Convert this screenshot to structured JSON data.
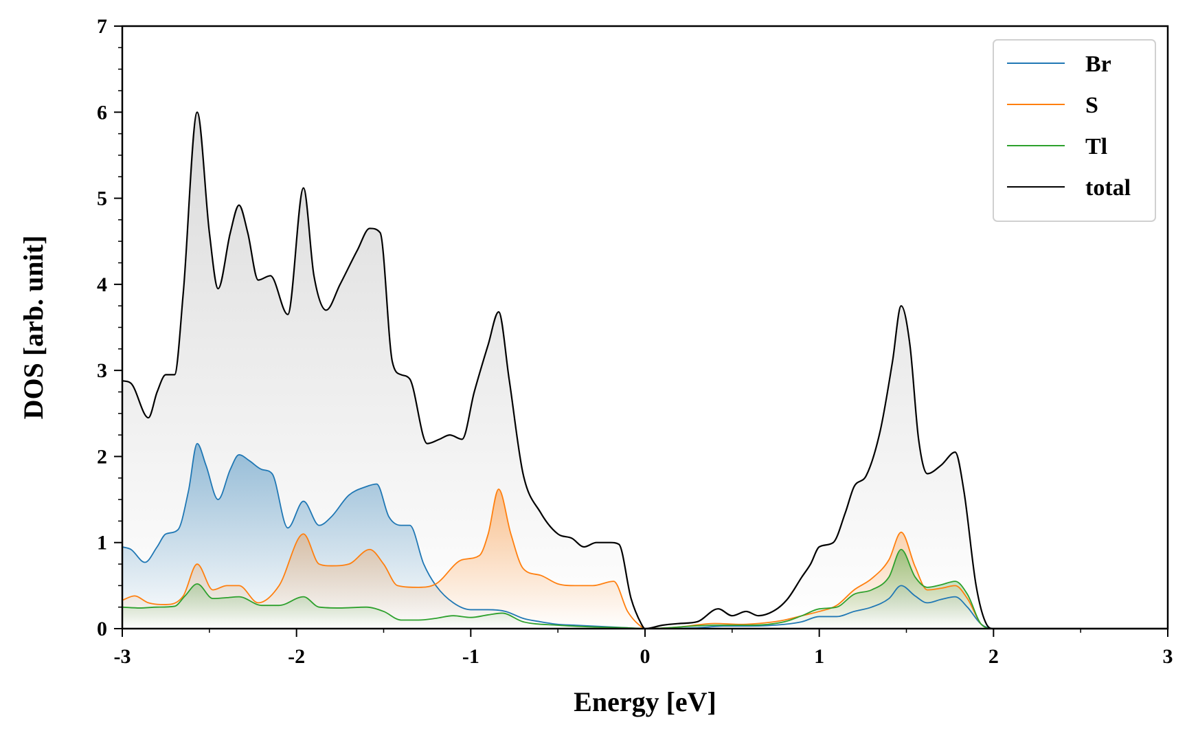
{
  "chart_data": {
    "type": "area",
    "title": "",
    "xlabel": "Energy [eV]",
    "ylabel": "DOS [arb. unit]",
    "xlim": [
      -3,
      3
    ],
    "ylim": [
      0,
      7
    ],
    "xticks": [
      -3,
      -2,
      -1,
      0,
      1,
      2,
      3
    ],
    "xtick_labels": [
      "-3",
      "-2",
      "-1",
      "0",
      "1",
      "2",
      "3"
    ],
    "yticks": [
      0,
      1,
      2,
      3,
      4,
      5,
      6,
      7
    ],
    "ytick_labels": [
      "0",
      "1",
      "2",
      "3",
      "4",
      "5",
      "6",
      "7"
    ],
    "legend_position": "top-right",
    "grid": false,
    "series": [
      {
        "name": "Br",
        "color": "#1f77b4",
        "filled": true,
        "points": [
          [
            -3.0,
            0.95
          ],
          [
            -2.95,
            0.92
          ],
          [
            -2.87,
            0.77
          ],
          [
            -2.8,
            0.95
          ],
          [
            -2.75,
            1.1
          ],
          [
            -2.68,
            1.15
          ],
          [
            -2.62,
            1.6
          ],
          [
            -2.57,
            2.15
          ],
          [
            -2.52,
            1.9
          ],
          [
            -2.45,
            1.5
          ],
          [
            -2.38,
            1.85
          ],
          [
            -2.33,
            2.02
          ],
          [
            -2.27,
            1.95
          ],
          [
            -2.2,
            1.85
          ],
          [
            -2.14,
            1.8
          ],
          [
            -2.05,
            1.17
          ],
          [
            -1.96,
            1.48
          ],
          [
            -1.87,
            1.2
          ],
          [
            -1.8,
            1.3
          ],
          [
            -1.7,
            1.55
          ],
          [
            -1.6,
            1.65
          ],
          [
            -1.54,
            1.68
          ],
          [
            -1.47,
            1.3
          ],
          [
            -1.4,
            1.2
          ],
          [
            -1.35,
            1.2
          ],
          [
            -1.27,
            0.75
          ],
          [
            -1.2,
            0.5
          ],
          [
            -1.1,
            0.3
          ],
          [
            -1.0,
            0.22
          ],
          [
            -0.9,
            0.22
          ],
          [
            -0.8,
            0.2
          ],
          [
            -0.7,
            0.12
          ],
          [
            -0.6,
            0.08
          ],
          [
            -0.5,
            0.05
          ],
          [
            -0.4,
            0.04
          ],
          [
            -0.3,
            0.03
          ],
          [
            -0.2,
            0.02
          ],
          [
            -0.1,
            0.01
          ],
          [
            0.0,
            0.0
          ],
          [
            0.3,
            0.01
          ],
          [
            0.45,
            0.03
          ],
          [
            0.6,
            0.03
          ],
          [
            0.8,
            0.05
          ],
          [
            0.9,
            0.08
          ],
          [
            1.0,
            0.14
          ],
          [
            1.1,
            0.14
          ],
          [
            1.2,
            0.2
          ],
          [
            1.3,
            0.25
          ],
          [
            1.4,
            0.35
          ],
          [
            1.47,
            0.5
          ],
          [
            1.55,
            0.38
          ],
          [
            1.62,
            0.3
          ],
          [
            1.7,
            0.34
          ],
          [
            1.78,
            0.37
          ],
          [
            1.85,
            0.25
          ],
          [
            1.93,
            0.05
          ],
          [
            2.0,
            0.0
          ],
          [
            3.0,
            0.0
          ]
        ]
      },
      {
        "name": "S",
        "color": "#ff7f0e",
        "filled": true,
        "points": [
          [
            -3.0,
            0.33
          ],
          [
            -2.93,
            0.38
          ],
          [
            -2.85,
            0.3
          ],
          [
            -2.75,
            0.28
          ],
          [
            -2.65,
            0.38
          ],
          [
            -2.57,
            0.75
          ],
          [
            -2.48,
            0.45
          ],
          [
            -2.4,
            0.5
          ],
          [
            -2.33,
            0.5
          ],
          [
            -2.22,
            0.3
          ],
          [
            -2.1,
            0.5
          ],
          [
            -1.96,
            1.1
          ],
          [
            -1.87,
            0.75
          ],
          [
            -1.8,
            0.73
          ],
          [
            -1.7,
            0.75
          ],
          [
            -1.58,
            0.92
          ],
          [
            -1.5,
            0.75
          ],
          [
            -1.42,
            0.5
          ],
          [
            -1.3,
            0.48
          ],
          [
            -1.2,
            0.52
          ],
          [
            -1.05,
            0.8
          ],
          [
            -0.95,
            0.85
          ],
          [
            -0.9,
            1.1
          ],
          [
            -0.84,
            1.62
          ],
          [
            -0.77,
            1.1
          ],
          [
            -0.7,
            0.7
          ],
          [
            -0.6,
            0.62
          ],
          [
            -0.5,
            0.52
          ],
          [
            -0.4,
            0.5
          ],
          [
            -0.3,
            0.5
          ],
          [
            -0.18,
            0.55
          ],
          [
            -0.1,
            0.2
          ],
          [
            -0.02,
            0.02
          ],
          [
            0.0,
            0.0
          ],
          [
            0.2,
            0.02
          ],
          [
            0.4,
            0.06
          ],
          [
            0.55,
            0.05
          ],
          [
            0.7,
            0.07
          ],
          [
            0.8,
            0.1
          ],
          [
            0.9,
            0.15
          ],
          [
            1.0,
            0.2
          ],
          [
            1.1,
            0.27
          ],
          [
            1.2,
            0.45
          ],
          [
            1.3,
            0.58
          ],
          [
            1.4,
            0.8
          ],
          [
            1.47,
            1.12
          ],
          [
            1.55,
            0.72
          ],
          [
            1.62,
            0.45
          ],
          [
            1.7,
            0.47
          ],
          [
            1.78,
            0.5
          ],
          [
            1.85,
            0.35
          ],
          [
            1.93,
            0.05
          ],
          [
            2.0,
            0.0
          ],
          [
            3.0,
            0.0
          ]
        ]
      },
      {
        "name": "Tl",
        "color": "#2ca02c",
        "filled": true,
        "points": [
          [
            -3.0,
            0.25
          ],
          [
            -2.9,
            0.24
          ],
          [
            -2.8,
            0.25
          ],
          [
            -2.7,
            0.26
          ],
          [
            -2.64,
            0.38
          ],
          [
            -2.57,
            0.52
          ],
          [
            -2.48,
            0.35
          ],
          [
            -2.4,
            0.36
          ],
          [
            -2.33,
            0.37
          ],
          [
            -2.2,
            0.27
          ],
          [
            -2.1,
            0.27
          ],
          [
            -1.96,
            0.37
          ],
          [
            -1.87,
            0.25
          ],
          [
            -1.75,
            0.24
          ],
          [
            -1.6,
            0.25
          ],
          [
            -1.5,
            0.2
          ],
          [
            -1.4,
            0.1
          ],
          [
            -1.3,
            0.1
          ],
          [
            -1.2,
            0.12
          ],
          [
            -1.1,
            0.15
          ],
          [
            -1.0,
            0.13
          ],
          [
            -0.9,
            0.16
          ],
          [
            -0.82,
            0.18
          ],
          [
            -0.7,
            0.08
          ],
          [
            -0.5,
            0.04
          ],
          [
            -0.3,
            0.02
          ],
          [
            -0.1,
            0.01
          ],
          [
            0.0,
            0.0
          ],
          [
            0.4,
            0.04
          ],
          [
            0.6,
            0.04
          ],
          [
            0.8,
            0.08
          ],
          [
            0.9,
            0.15
          ],
          [
            1.0,
            0.23
          ],
          [
            1.1,
            0.25
          ],
          [
            1.2,
            0.4
          ],
          [
            1.3,
            0.45
          ],
          [
            1.4,
            0.6
          ],
          [
            1.47,
            0.92
          ],
          [
            1.55,
            0.6
          ],
          [
            1.62,
            0.48
          ],
          [
            1.7,
            0.51
          ],
          [
            1.78,
            0.55
          ],
          [
            1.85,
            0.4
          ],
          [
            1.93,
            0.05
          ],
          [
            2.0,
            0.0
          ],
          [
            3.0,
            0.0
          ]
        ]
      },
      {
        "name": "total",
        "color": "#000000",
        "filled": true,
        "points": [
          [
            -3.0,
            2.88
          ],
          [
            -2.95,
            2.85
          ],
          [
            -2.85,
            2.45
          ],
          [
            -2.8,
            2.75
          ],
          [
            -2.75,
            2.95
          ],
          [
            -2.7,
            2.95
          ],
          [
            -2.65,
            3.9
          ],
          [
            -2.57,
            6.0
          ],
          [
            -2.5,
            4.6
          ],
          [
            -2.45,
            3.95
          ],
          [
            -2.38,
            4.6
          ],
          [
            -2.33,
            4.92
          ],
          [
            -2.28,
            4.6
          ],
          [
            -2.22,
            4.05
          ],
          [
            -2.15,
            4.1
          ],
          [
            -2.05,
            3.65
          ],
          [
            -1.96,
            5.12
          ],
          [
            -1.9,
            4.1
          ],
          [
            -1.83,
            3.7
          ],
          [
            -1.75,
            4.0
          ],
          [
            -1.65,
            4.4
          ],
          [
            -1.58,
            4.65
          ],
          [
            -1.52,
            4.6
          ],
          [
            -1.45,
            3.1
          ],
          [
            -1.4,
            2.95
          ],
          [
            -1.35,
            2.9
          ],
          [
            -1.25,
            2.15
          ],
          [
            -1.18,
            2.2
          ],
          [
            -1.12,
            2.25
          ],
          [
            -1.05,
            2.2
          ],
          [
            -0.98,
            2.75
          ],
          [
            -0.9,
            3.3
          ],
          [
            -0.84,
            3.68
          ],
          [
            -0.78,
            2.9
          ],
          [
            -0.7,
            1.8
          ],
          [
            -0.6,
            1.35
          ],
          [
            -0.5,
            1.1
          ],
          [
            -0.42,
            1.05
          ],
          [
            -0.35,
            0.95
          ],
          [
            -0.28,
            1.0
          ],
          [
            -0.2,
            1.0
          ],
          [
            -0.15,
            0.98
          ],
          [
            -0.08,
            0.35
          ],
          [
            -0.02,
            0.05
          ],
          [
            0.0,
            0.0
          ],
          [
            0.1,
            0.04
          ],
          [
            0.2,
            0.06
          ],
          [
            0.3,
            0.08
          ],
          [
            0.42,
            0.23
          ],
          [
            0.5,
            0.15
          ],
          [
            0.58,
            0.2
          ],
          [
            0.65,
            0.15
          ],
          [
            0.75,
            0.22
          ],
          [
            0.82,
            0.35
          ],
          [
            0.9,
            0.6
          ],
          [
            0.95,
            0.75
          ],
          [
            1.0,
            0.95
          ],
          [
            1.08,
            1.0
          ],
          [
            1.15,
            1.35
          ],
          [
            1.2,
            1.65
          ],
          [
            1.27,
            1.78
          ],
          [
            1.35,
            2.3
          ],
          [
            1.42,
            3.1
          ],
          [
            1.47,
            3.75
          ],
          [
            1.52,
            3.3
          ],
          [
            1.57,
            2.2
          ],
          [
            1.62,
            1.8
          ],
          [
            1.7,
            1.9
          ],
          [
            1.78,
            2.05
          ],
          [
            1.83,
            1.6
          ],
          [
            1.9,
            0.5
          ],
          [
            1.96,
            0.05
          ],
          [
            2.0,
            0.0
          ],
          [
            3.0,
            0.0
          ]
        ]
      }
    ]
  }
}
